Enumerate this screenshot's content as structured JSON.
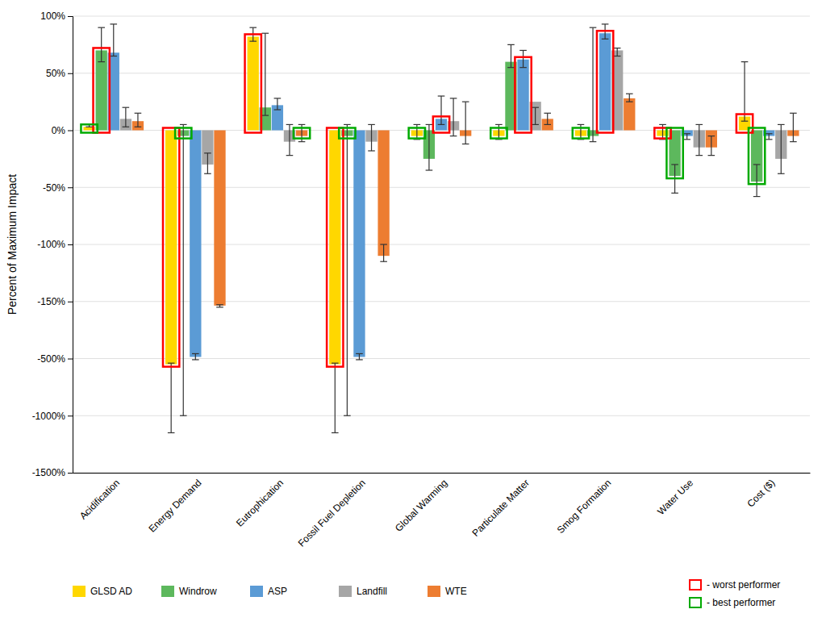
{
  "chart_data": {
    "type": "bar",
    "ylabel": "Percent of Maximum Impact",
    "categories": [
      "Acidification",
      "Energy Demand",
      "Eutrophication",
      "Fossil Fuel Depletion",
      "Global Warming",
      "Particulate Matter",
      "Smog Formation",
      "Water Use",
      "Cost ($)"
    ],
    "series": [
      {
        "name": "GLSD AD",
        "color": "#FFD700",
        "values": [
          3,
          -550,
          82,
          -550,
          -5,
          -5,
          -5,
          -5,
          12
        ],
        "err_low": [
          3,
          -1150,
          78,
          -1150,
          -8,
          -8,
          -8,
          -8,
          8
        ],
        "err_high": [
          5,
          -540,
          90,
          -540,
          5,
          5,
          5,
          5,
          60
        ]
      },
      {
        "name": "Windrow",
        "color": "#5DB85D",
        "values": [
          70,
          -5,
          20,
          -5,
          -25,
          60,
          -5,
          -40,
          -45
        ],
        "err_low": [
          60,
          -1000,
          13,
          -1000,
          -35,
          55,
          -10,
          -55,
          -58
        ],
        "err_high": [
          90,
          5,
          85,
          5,
          5,
          75,
          90,
          -30,
          -30
        ]
      },
      {
        "name": "ASP",
        "color": "#5B9BD5",
        "values": [
          68,
          -490,
          22,
          -490,
          10,
          62,
          85,
          -5,
          -5
        ],
        "err_low": [
          65,
          -510,
          18,
          -510,
          5,
          55,
          80,
          -8,
          -8
        ],
        "err_high": [
          93,
          -470,
          28,
          -470,
          30,
          70,
          93,
          -3,
          -3
        ]
      },
      {
        "name": "Landfill",
        "color": "#A6A6A6",
        "values": [
          10,
          -30,
          -10,
          -10,
          8,
          25,
          70,
          -15,
          -25
        ],
        "err_low": [
          3,
          -38,
          -22,
          -18,
          -5,
          20,
          65,
          -22,
          -38
        ],
        "err_high": [
          20,
          -20,
          5,
          5,
          28,
          5,
          72,
          5,
          5
        ]
      },
      {
        "name": "WTE",
        "color": "#ED7D31",
        "values": [
          8,
          -175,
          -5,
          -110,
          -5,
          10,
          28,
          -15,
          -5
        ],
        "err_low": [
          3,
          -185,
          -10,
          -115,
          -12,
          5,
          25,
          -22,
          -10
        ],
        "err_high": [
          15,
          -170,
          5,
          -100,
          25,
          15,
          32,
          -5,
          15
        ]
      }
    ],
    "highlights": [
      {
        "name": "- worst performer",
        "color": "red",
        "series": [
          "Windrow",
          "GLSD AD",
          "GLSD AD",
          "GLSD AD",
          "ASP",
          "ASP",
          "ASP",
          "GLSD AD",
          "GLSD AD"
        ]
      },
      {
        "name": "- best performer",
        "color": "#00AA00",
        "series": [
          "GLSD AD",
          "Windrow",
          "WTE",
          "Windrow",
          "GLSD AD",
          "GLSD AD",
          "GLSD AD",
          "Windrow",
          "Windrow"
        ]
      }
    ],
    "ylim": [
      -1500,
      100
    ],
    "yticks": [
      {
        "value": 100,
        "label": "100%"
      },
      {
        "value": 50,
        "label": "50%"
      },
      {
        "value": 0,
        "label": "0%"
      },
      {
        "value": -50,
        "label": "-50%"
      },
      {
        "value": -100,
        "label": "-100%"
      },
      {
        "value": -150,
        "label": "-150%"
      },
      {
        "value": -500,
        "label": "-500%"
      },
      {
        "value": -1000,
        "label": "-1000%"
      },
      {
        "value": -1500,
        "label": "-1500%"
      }
    ],
    "grid": true,
    "legend": "bottom"
  }
}
